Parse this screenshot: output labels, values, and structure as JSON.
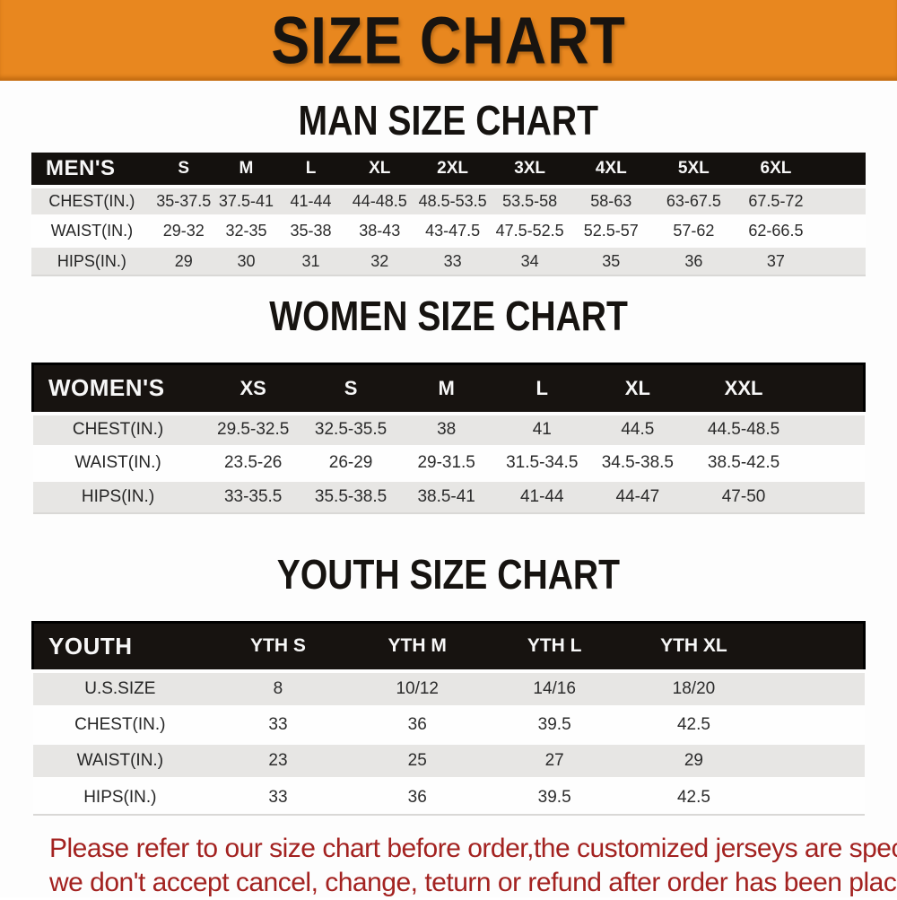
{
  "banner": {
    "title": "SIZE CHART"
  },
  "colors": {
    "banner_bg": "#E8871F",
    "header_bar_bg": "#14110E",
    "row_gray_bg": "#E7E6E4",
    "row_white_bg": "#FEFEFE",
    "note_red": "#A32220"
  },
  "tables": [
    {
      "id": "men",
      "heading": "MAN SIZE CHART",
      "header": [
        "MEN'S",
        "S",
        "M",
        "L",
        "XL",
        "2XL",
        "3XL",
        "4XL",
        "5XL",
        "6XL"
      ],
      "rows": [
        [
          "CHEST(IN.)",
          "35-37.5",
          "37.5-41",
          "41-44",
          "44-48.5",
          "48.5-53.5",
          "53.5-58",
          "58-63",
          "63-67.5",
          "67.5-72"
        ],
        [
          "WAIST(IN.)",
          "29-32",
          "32-35",
          "35-38",
          "38-43",
          "43-47.5",
          "47.5-52.5",
          "52.5-57",
          "57-62",
          "62-66.5"
        ],
        [
          "HIPS(IN.)",
          "29",
          "30",
          "31",
          "32",
          "33",
          "34",
          "35",
          "36",
          "37"
        ]
      ]
    },
    {
      "id": "women",
      "heading": "WOMEN SIZE CHART",
      "header": [
        "WOMEN'S",
        "XS",
        "S",
        "M",
        "L",
        "XL",
        "XXL"
      ],
      "rows": [
        [
          "CHEST(IN.)",
          "29.5-32.5",
          "32.5-35.5",
          "38",
          "41",
          "44.5",
          "44.5-48.5"
        ],
        [
          "WAIST(IN.)",
          "23.5-26",
          "26-29",
          "29-31.5",
          "31.5-34.5",
          "34.5-38.5",
          "38.5-42.5"
        ],
        [
          "HIPS(IN.)",
          "33-35.5",
          "35.5-38.5",
          "38.5-41",
          "41-44",
          "44-47",
          "47-50"
        ]
      ]
    },
    {
      "id": "youth",
      "heading": "YOUTH SIZE CHART",
      "header": [
        "YOUTH",
        "YTH S",
        "YTH M",
        "YTH L",
        "YTH XL"
      ],
      "rows": [
        [
          "U.S.SIZE",
          "8",
          "10/12",
          "14/16",
          "18/20"
        ],
        [
          "CHEST(IN.)",
          "33",
          "36",
          "39.5",
          "42.5"
        ],
        [
          "WAIST(IN.)",
          "23",
          "25",
          "27",
          "29"
        ],
        [
          "HIPS(IN.)",
          "33",
          "36",
          "39.5",
          "42.5"
        ]
      ]
    }
  ],
  "note": {
    "line1": "Please refer to our size chart before order,the customized jerseys are special products,",
    "line2": "we don't accept cancel, change, teturn or refund after order has been placed!"
  }
}
